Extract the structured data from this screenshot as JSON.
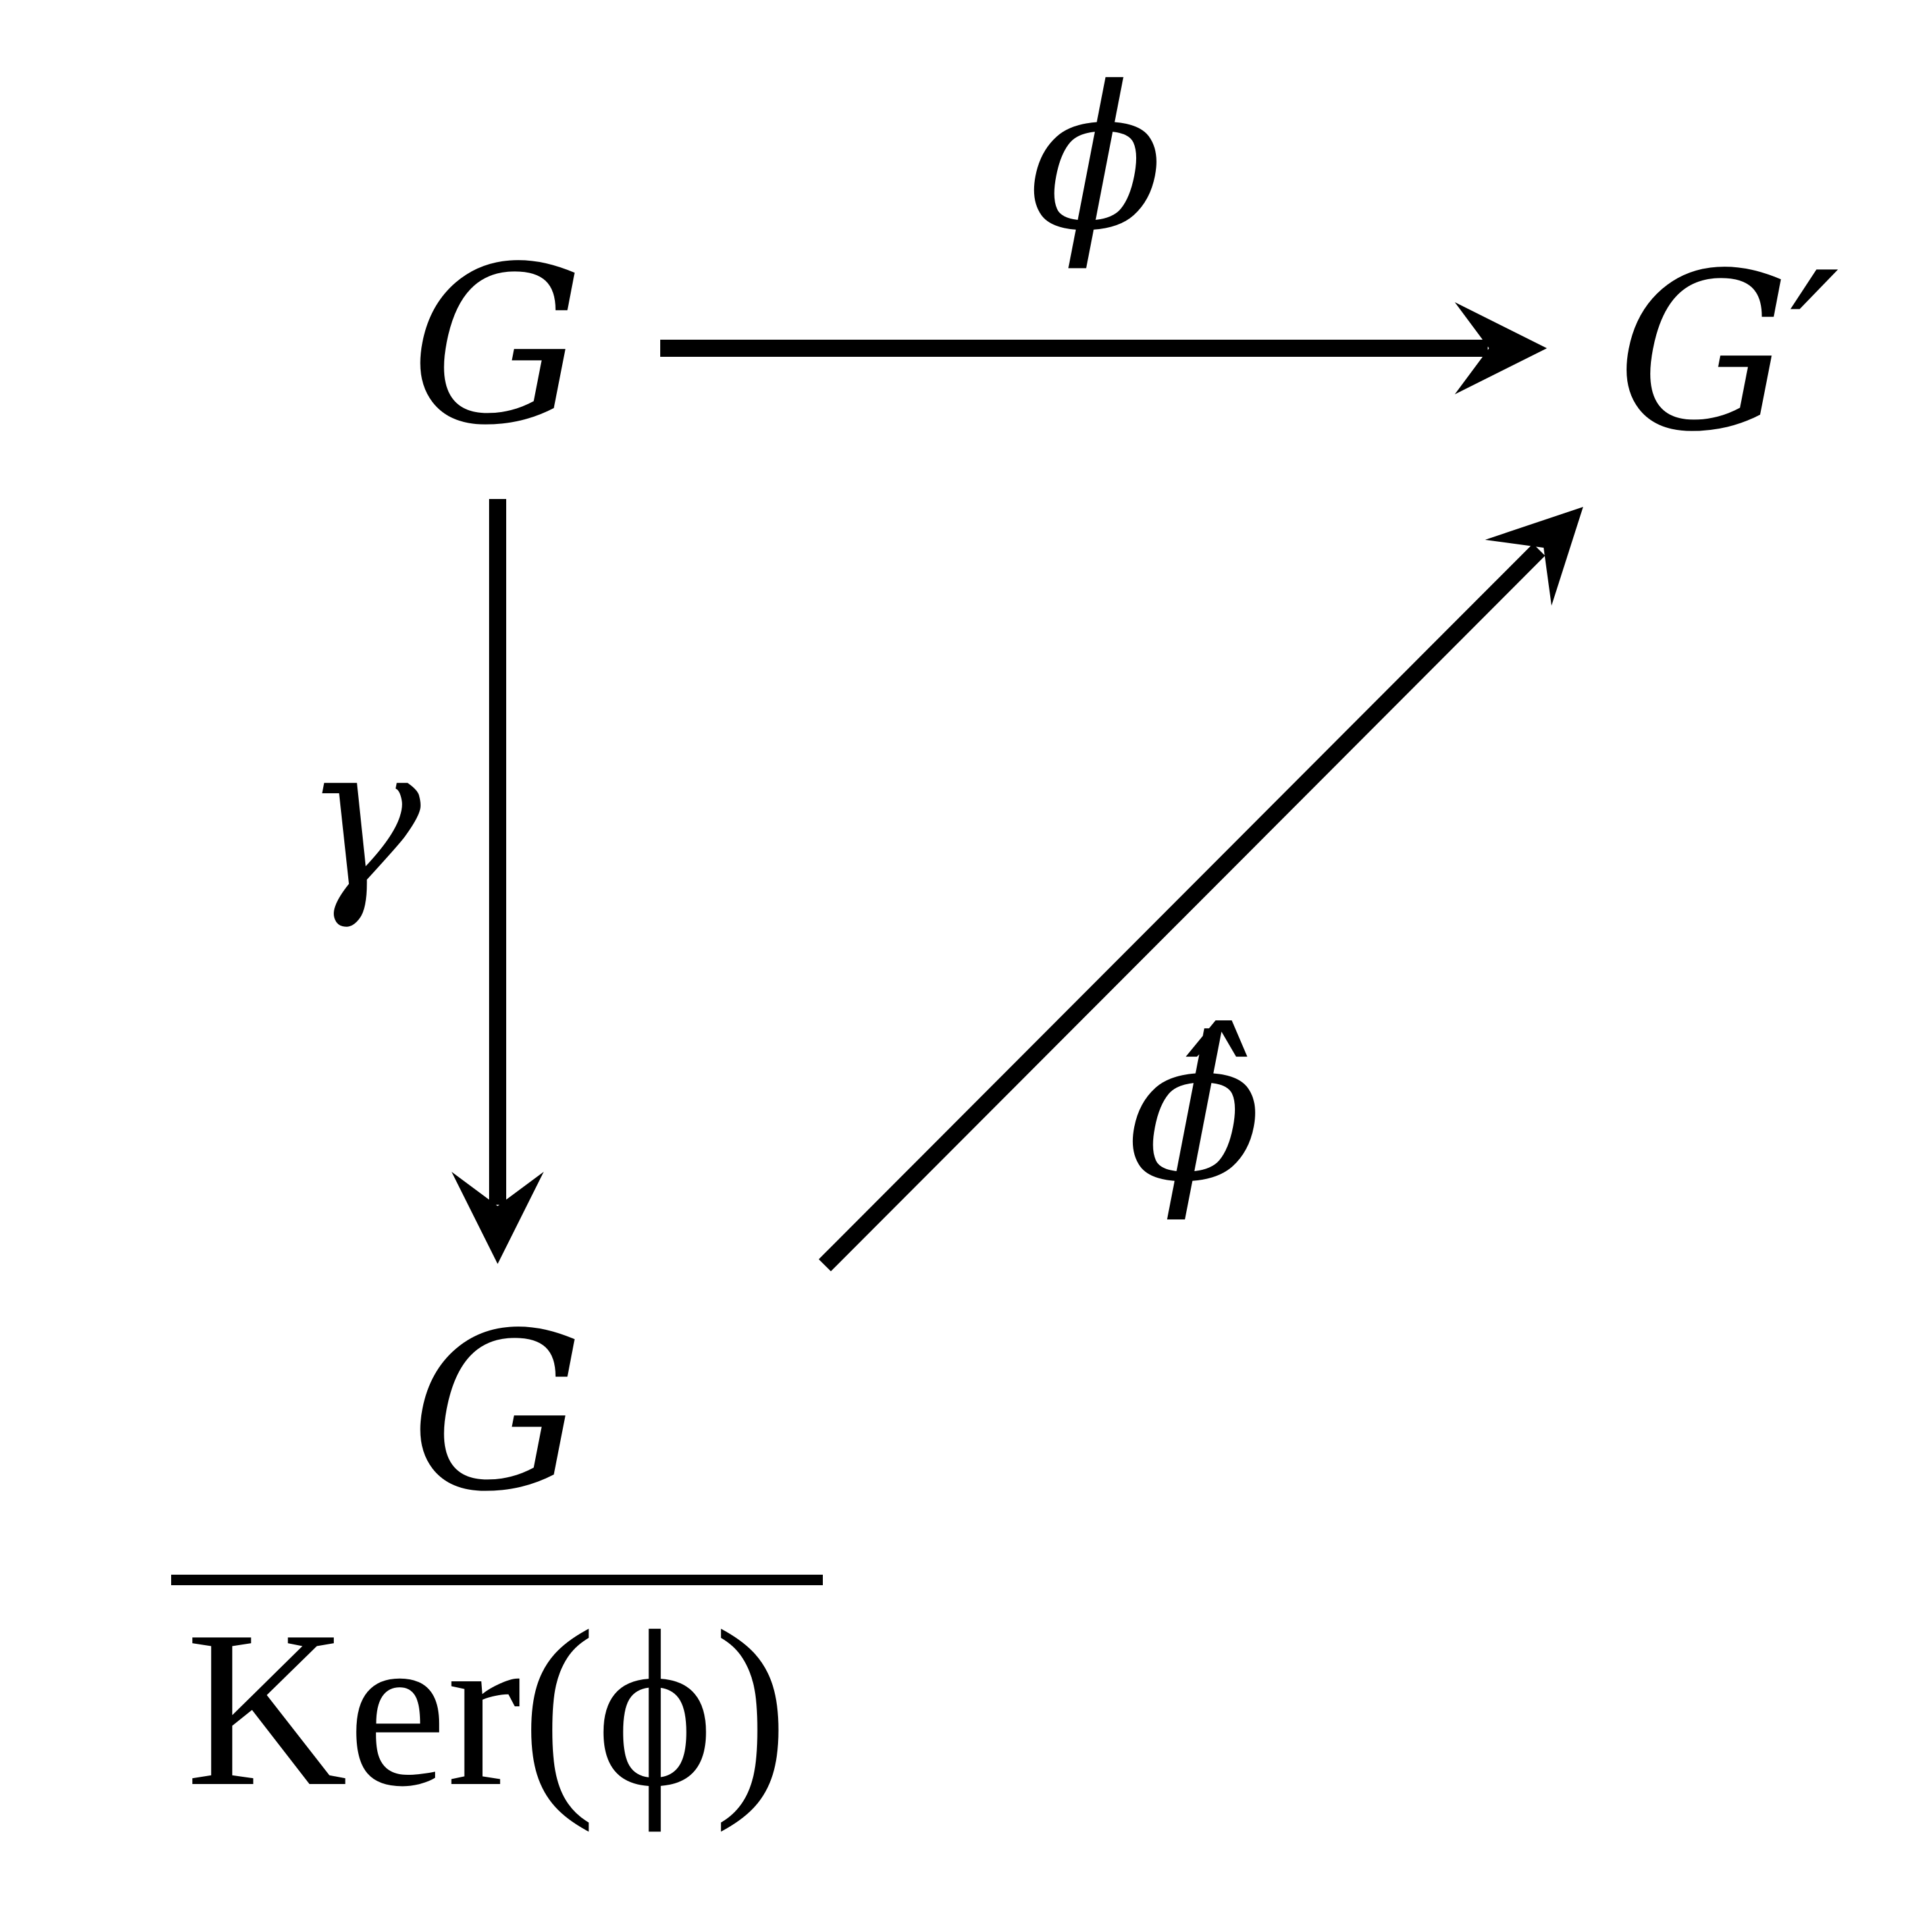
{
  "nodes": {
    "top_left": "G",
    "top_right": "G′",
    "quotient_numerator": "G",
    "quotient_denominator": "Ker(ϕ)"
  },
  "edges": {
    "top": {
      "label": "ϕ",
      "from": "top_left",
      "to": "top_right"
    },
    "left": {
      "label": "γ",
      "from": "top_left",
      "to": "quotient_numerator"
    },
    "diagonal": {
      "label": "ϕ̂",
      "from": "quotient_numerator",
      "to": "top_right"
    }
  },
  "colors": {
    "ink": "#000000",
    "background": "#ffffff"
  }
}
